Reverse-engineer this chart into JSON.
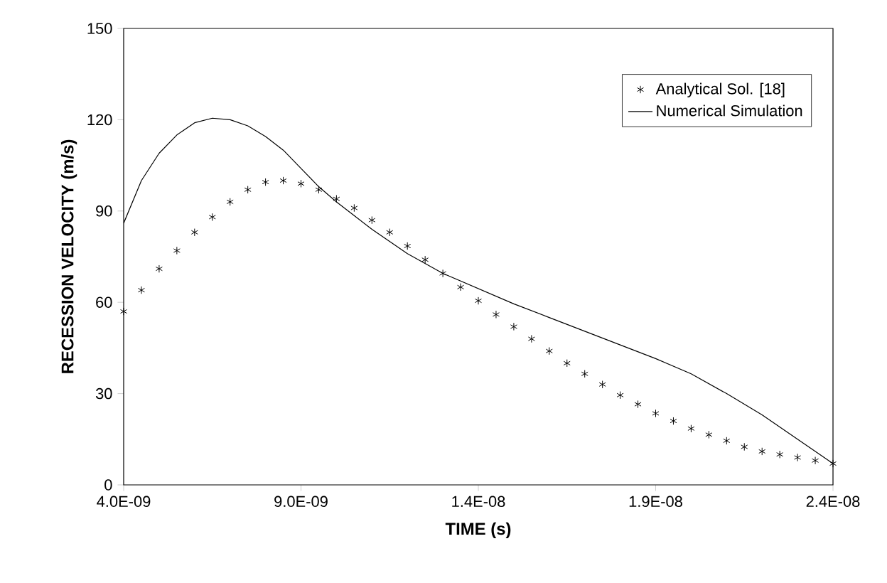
{
  "chart_data": {
    "type": "line",
    "xlabel": "TIME (s)",
    "ylabel": "RECESSION VELOCITY (m/s)",
    "xlim": [
      4e-09,
      2.4e-08
    ],
    "ylim": [
      0,
      150
    ],
    "xticks": [
      {
        "value": 4e-09,
        "label": "4.0E-09"
      },
      {
        "value": 9e-09,
        "label": "9.0E-09"
      },
      {
        "value": 1.4e-08,
        "label": "1.4E-08"
      },
      {
        "value": 1.9e-08,
        "label": "1.9E-08"
      },
      {
        "value": 2.4e-08,
        "label": "2.4E-08"
      }
    ],
    "yticks": [
      0,
      30,
      60,
      90,
      120,
      150
    ],
    "grid": false,
    "legend": "top right",
    "series": [
      {
        "name": "Analytical Sol. [18]",
        "type": "scatter",
        "marker": "cross",
        "color": "#000000",
        "x": [
          4e-09,
          4.5e-09,
          5e-09,
          5.5e-09,
          6e-09,
          6.5e-09,
          7e-09,
          7.5e-09,
          8e-09,
          8.5e-09,
          9e-09,
          9.5e-09,
          1e-08,
          1.05e-08,
          1.1e-08,
          1.15e-08,
          1.2e-08,
          1.25e-08,
          1.3e-08,
          1.35e-08,
          1.4e-08,
          1.45e-08,
          1.5e-08,
          1.55e-08,
          1.6e-08,
          1.65e-08,
          1.7e-08,
          1.75e-08,
          1.8e-08,
          1.85e-08,
          1.9e-08,
          1.95e-08,
          2e-08,
          2.05e-08,
          2.1e-08,
          2.15e-08,
          2.2e-08,
          2.25e-08,
          2.3e-08,
          2.35e-08,
          2.4e-08
        ],
        "values": [
          57,
          64,
          71,
          77,
          83,
          88,
          93,
          97,
          99.5,
          100,
          99,
          97,
          94,
          91,
          87,
          83,
          78.5,
          74,
          69.5,
          65,
          60.5,
          56,
          52,
          48,
          44,
          40,
          36.5,
          33,
          29.5,
          26.5,
          23.5,
          21,
          18.5,
          16.5,
          14.5,
          12.5,
          11,
          10,
          9,
          8,
          7
        ]
      },
      {
        "name": "Numerical Simulation",
        "marker": "none",
        "line_style": "solid",
        "color": "#000000",
        "x": [
          4e-09,
          4.5e-09,
          5e-09,
          5.5e-09,
          6e-09,
          6.5e-09,
          7e-09,
          7.5e-09,
          8e-09,
          8.5e-09,
          9e-09,
          9.5e-09,
          1e-08,
          1.05e-08,
          1.1e-08,
          1.2e-08,
          1.3e-08,
          1.4e-08,
          1.5e-08,
          1.6e-08,
          1.7e-08,
          1.8e-08,
          1.9e-08,
          2e-08,
          2.1e-08,
          2.2e-08,
          2.3e-08,
          2.4e-08
        ],
        "values": [
          86,
          100,
          109,
          115,
          119,
          120.5,
          120,
          118,
          114.5,
          110,
          104,
          98,
          93,
          88.5,
          84,
          76,
          69.5,
          64.5,
          59.5,
          55,
          50.5,
          46,
          41.5,
          36.5,
          30,
          23,
          15,
          7
        ]
      }
    ]
  }
}
